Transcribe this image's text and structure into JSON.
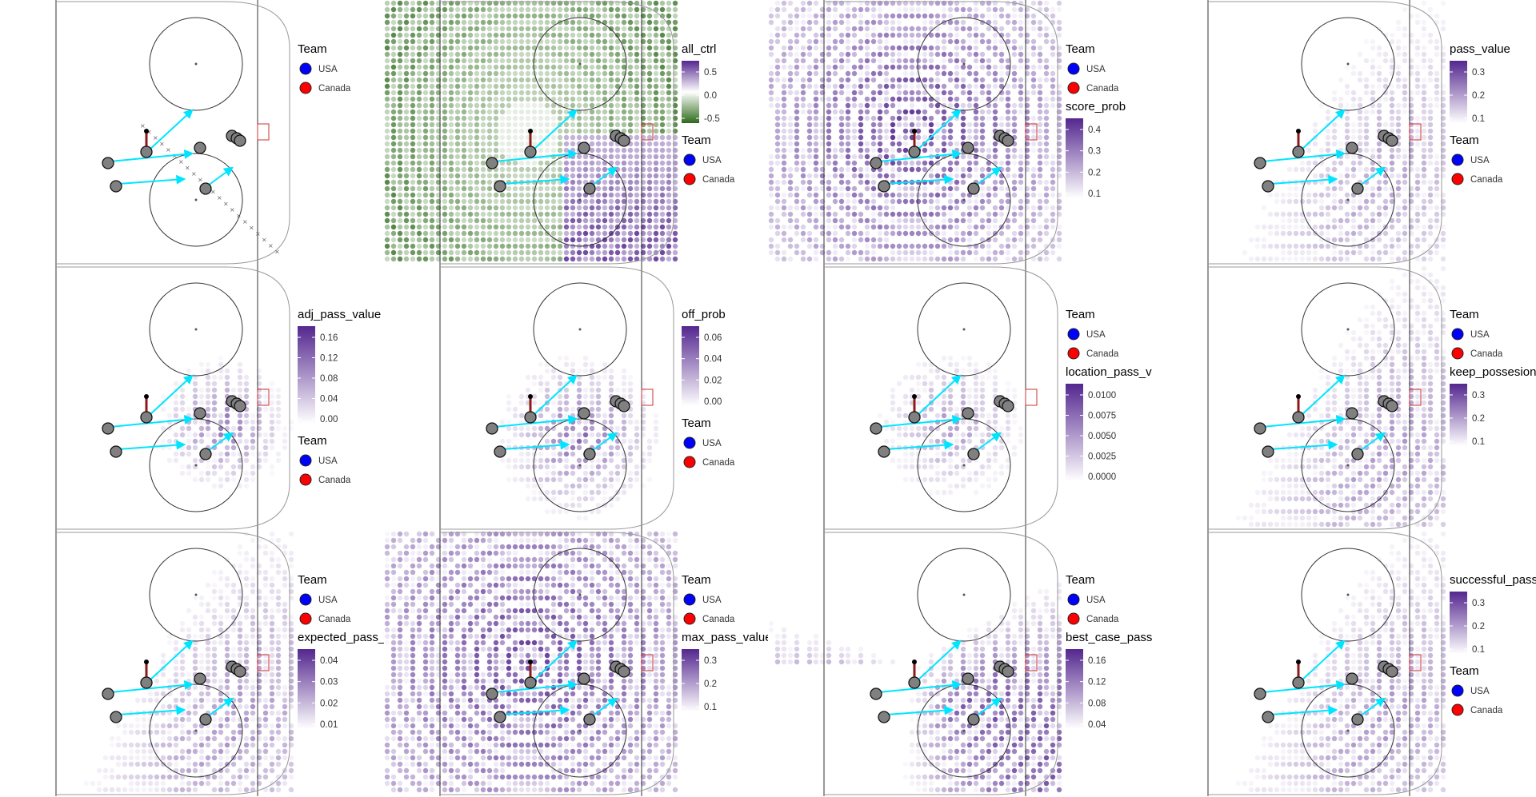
{
  "team_legend": {
    "title": "Team",
    "entries": [
      {
        "label": "USA",
        "color": "#0000ff"
      },
      {
        "label": "Canada",
        "color": "#ff0000"
      }
    ]
  },
  "colors": {
    "fill_purple_high": "#54278f",
    "fill_green_low": "#2d6a1a",
    "player_fill": "#808080",
    "player_outline": "#111111",
    "arrow_color": "#00e5ff",
    "puck_stick_color": "#8b1a1a",
    "rink_line": "#333333",
    "net_color": "#cc3333"
  },
  "chart_data": [
    {
      "type": "scatter",
      "field": "none",
      "legends": [
        {
          "kind": "team",
          "title": "Team"
        }
      ]
    },
    {
      "type": "heatmap",
      "field": "all_ctrl",
      "palette": "diverging",
      "legends": [
        {
          "kind": "scale",
          "title": "all_ctrl",
          "ticks": [
            "0.5",
            "0.0",
            "-0.5"
          ]
        },
        {
          "kind": "team",
          "title": "Team"
        }
      ]
    },
    {
      "type": "heatmap",
      "field": "score_prob",
      "palette": "purple",
      "legends": [
        {
          "kind": "team",
          "title": "Team"
        },
        {
          "kind": "scale",
          "title": "score_prob",
          "ticks": [
            "0.4",
            "0.3",
            "0.2",
            "0.1"
          ]
        }
      ]
    },
    {
      "type": "heatmap",
      "field": "pass_value",
      "palette": "purple",
      "legends": [
        {
          "kind": "scale",
          "title": "pass_value",
          "ticks": [
            "0.3",
            "0.2",
            "0.1"
          ]
        },
        {
          "kind": "team",
          "title": "Team"
        }
      ]
    },
    {
      "type": "heatmap",
      "field": "adj_pass_value",
      "palette": "purple",
      "legends": [
        {
          "kind": "scale",
          "title": "adj_pass_value",
          "ticks": [
            "0.16",
            "0.12",
            "0.08",
            "0.04",
            "0.00"
          ]
        },
        {
          "kind": "team",
          "title": "Team"
        }
      ]
    },
    {
      "type": "heatmap",
      "field": "off_prob",
      "palette": "purple",
      "legends": [
        {
          "kind": "scale",
          "title": "off_prob",
          "ticks": [
            "0.06",
            "0.04",
            "0.02",
            "0.00"
          ]
        },
        {
          "kind": "team",
          "title": "Team"
        }
      ]
    },
    {
      "type": "heatmap",
      "field": "location_pass_value",
      "palette": "purple",
      "legends": [
        {
          "kind": "team",
          "title": "Team"
        },
        {
          "kind": "scale",
          "title": "location_pass_value",
          "ticks": [
            "0.0100",
            "0.0075",
            "0.0050",
            "0.0025",
            "0.0000"
          ]
        }
      ]
    },
    {
      "type": "heatmap",
      "field": "keep_possesion_prob",
      "palette": "purple",
      "legends": [
        {
          "kind": "team",
          "title": "Team"
        },
        {
          "kind": "scale",
          "title": "keep_possesion_prob",
          "ticks": [
            "0.3",
            "0.2",
            "0.1"
          ]
        }
      ]
    },
    {
      "type": "heatmap",
      "field": "expected_pass_value",
      "palette": "purple",
      "legends": [
        {
          "kind": "team",
          "title": "Team"
        },
        {
          "kind": "scale",
          "title": "expected_pass_value",
          "ticks": [
            "0.04",
            "0.03",
            "0.02",
            "0.01"
          ]
        }
      ]
    },
    {
      "type": "heatmap",
      "field": "max_pass_value",
      "palette": "purple",
      "legends": [
        {
          "kind": "team",
          "title": "Team"
        },
        {
          "kind": "scale",
          "title": "max_pass_value",
          "ticks": [
            "0.3",
            "0.2",
            "0.1"
          ]
        }
      ]
    },
    {
      "type": "heatmap",
      "field": "best_case_pass_value",
      "palette": "purple",
      "legends": [
        {
          "kind": "team",
          "title": "Team"
        },
        {
          "kind": "scale",
          "title": "best_case_pass_value",
          "ticks": [
            "0.16",
            "0.12",
            "0.08",
            "0.04"
          ]
        }
      ]
    },
    {
      "type": "heatmap",
      "field": "successful_pass_prob",
      "palette": "purple",
      "legends": [
        {
          "kind": "scale",
          "title": "successful_pass_prob",
          "ticks": [
            "0.3",
            "0.2",
            "0.1"
          ]
        },
        {
          "kind": "team",
          "title": "Team"
        }
      ]
    }
  ]
}
